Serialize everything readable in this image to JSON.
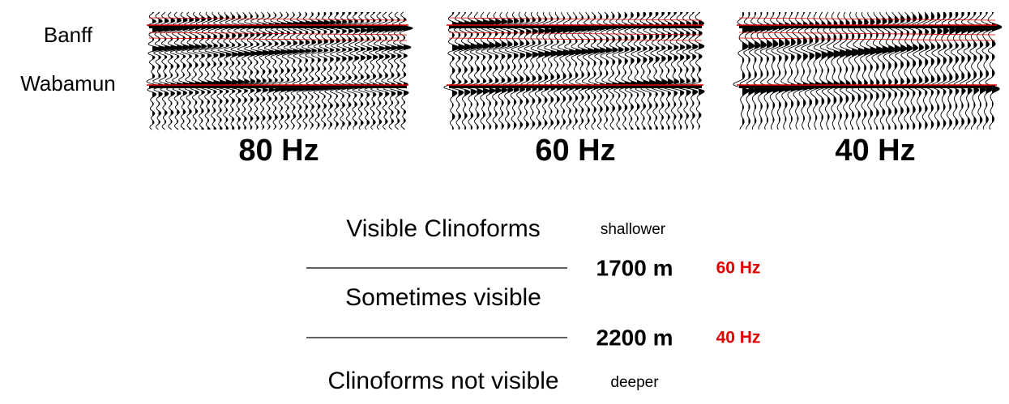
{
  "horizons": [
    "Banff",
    "Wabamun"
  ],
  "panels": [
    {
      "label": "80 Hz"
    },
    {
      "label": "60 Hz"
    },
    {
      "label": "40 Hz"
    }
  ],
  "table": {
    "zones": [
      "Visible Clinoforms",
      "Sometimes visible",
      "Clinoforms not visible"
    ],
    "top_note": "shallower",
    "bottom_note": "deeper",
    "boundaries": [
      {
        "depth": "1700 m",
        "frequency": "60 Hz"
      },
      {
        "depth": "2200 m",
        "frequency": "40 Hz"
      }
    ]
  }
}
